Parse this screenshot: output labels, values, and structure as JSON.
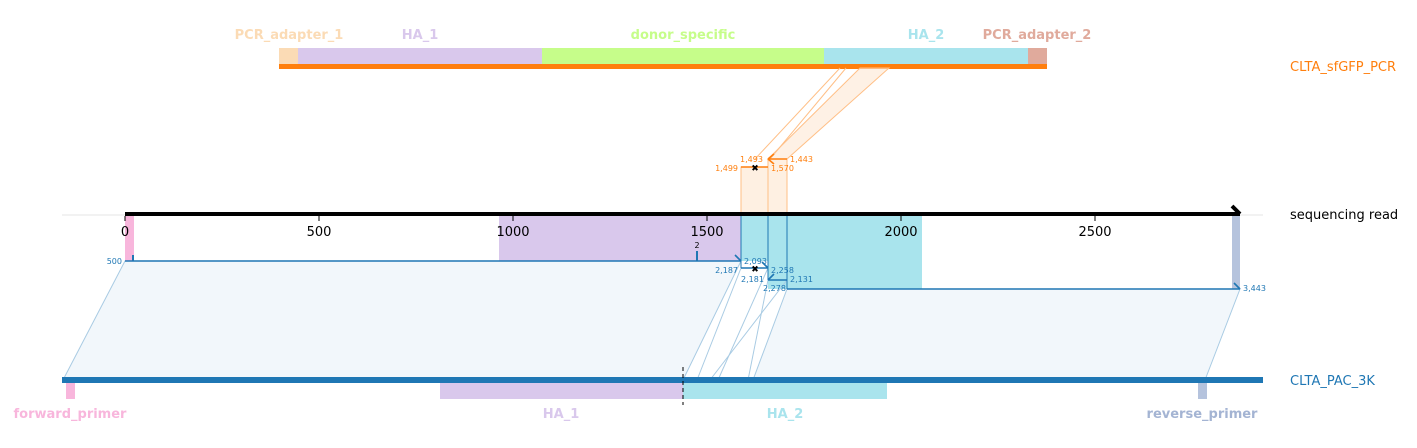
{
  "references": {
    "top": {
      "name": "CLTA_sfGFP_PCR",
      "color": "#ff7f0e",
      "features": [
        {
          "label": "PCR_adapter_1",
          "color": "#fbdbb5"
        },
        {
          "label": "HA_1",
          "color": "#d9c8ec"
        },
        {
          "label": "donor_specific",
          "color": "#c6fd8a"
        },
        {
          "label": "HA_2",
          "color": "#a9e4ed"
        },
        {
          "label": "PCR_adapter_2",
          "color": "#e0aa9c"
        }
      ]
    },
    "bottom": {
      "name": "CLTA_PAC_3K",
      "color": "#1f77b4",
      "features": [
        {
          "label": "forward_primer",
          "color": "#f8b6dc"
        },
        {
          "label": "HA_1",
          "color": "#d9c8ec"
        },
        {
          "label": "HA_2",
          "color": "#a9e4ed"
        },
        {
          "label": "reverse_primer",
          "color": "#b5c3dd"
        }
      ]
    }
  },
  "read": {
    "name": "sequencing read",
    "axis_ticks": [
      "0",
      "500",
      "1000",
      "1500",
      "2000",
      "2500"
    ]
  },
  "alignment_labels": {
    "top": [
      "1,499",
      "1,493",
      "1,443",
      "1,570"
    ],
    "bottom": [
      "500",
      "2",
      "2,093",
      "2,187",
      "2,258",
      "2,181",
      "2,131",
      "2,278",
      "3,443"
    ]
  }
}
